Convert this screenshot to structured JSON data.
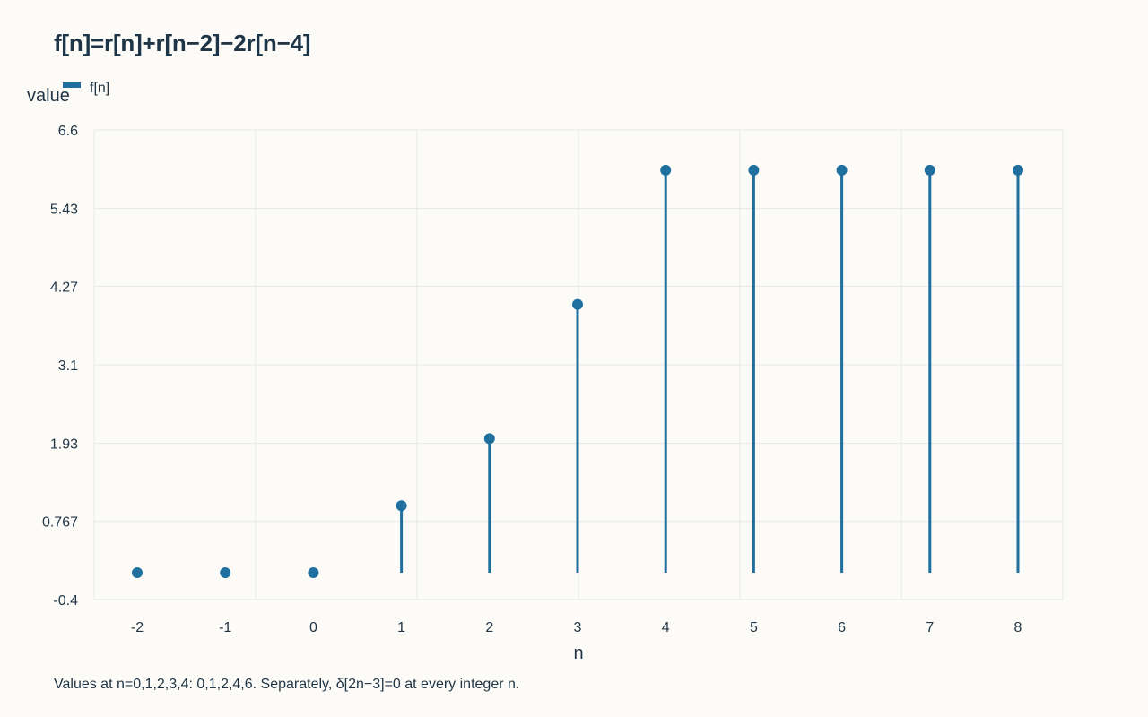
{
  "chart_data": {
    "type": "stem",
    "title": "f[n]=r[n]+r[n−2]−2r[n−4]",
    "xlabel": "n",
    "ylabel": "value",
    "legend": {
      "entries": [
        "f[n]"
      ],
      "placement": "top-left"
    },
    "x": [
      -2,
      -1,
      0,
      1,
      2,
      3,
      4,
      5,
      6,
      7,
      8
    ],
    "series": [
      {
        "name": "f[n]",
        "values": [
          0,
          0,
          0,
          1,
          2,
          4,
          6,
          6,
          6,
          6,
          6
        ]
      }
    ],
    "ylim": [
      -0.4,
      6.6
    ],
    "yticks": [
      "-0.4",
      "0.767",
      "1.93",
      "3.1",
      "4.27",
      "5.43",
      "6.6"
    ],
    "xticks": [
      "-2",
      "-1",
      "0",
      "1",
      "2",
      "3",
      "4",
      "5",
      "6",
      "7",
      "8"
    ],
    "grid": true,
    "color": "#1f6f9f",
    "annotation": "Values at n=0,1,2,3,4: 0,1,2,4,6. Separately, δ[2n−3]=0 at every integer n."
  }
}
